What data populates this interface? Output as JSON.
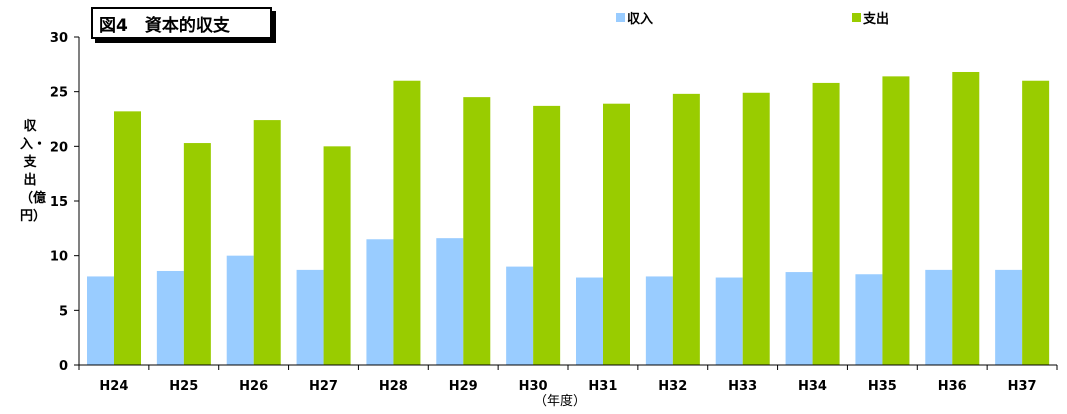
{
  "chart_data": {
    "type": "bar",
    "title": "図4　資本的収支",
    "ylabel": "収入・支出（億円）",
    "xlabel": "（年度）",
    "categories": [
      "H24",
      "H25",
      "H26",
      "H27",
      "H28",
      "H29",
      "H30",
      "H31",
      "H32",
      "H33",
      "H34",
      "H35",
      "H36",
      "H37"
    ],
    "series": [
      {
        "name": "収入",
        "color": "#99ccff",
        "values": [
          8.1,
          8.6,
          10.0,
          8.7,
          11.5,
          11.6,
          9.0,
          8.0,
          8.1,
          8.0,
          8.5,
          8.3,
          8.7,
          8.7
        ]
      },
      {
        "name": "支出",
        "color": "#99cc00",
        "values": [
          23.2,
          20.3,
          22.4,
          20.0,
          26.0,
          24.5,
          23.7,
          23.9,
          24.8,
          24.9,
          25.8,
          26.4,
          26.8,
          26.0
        ]
      }
    ],
    "ylim": [
      0,
      30
    ],
    "yticks": [
      0,
      5,
      10,
      15,
      20,
      25,
      30
    ],
    "grid": false,
    "legend": "top"
  }
}
